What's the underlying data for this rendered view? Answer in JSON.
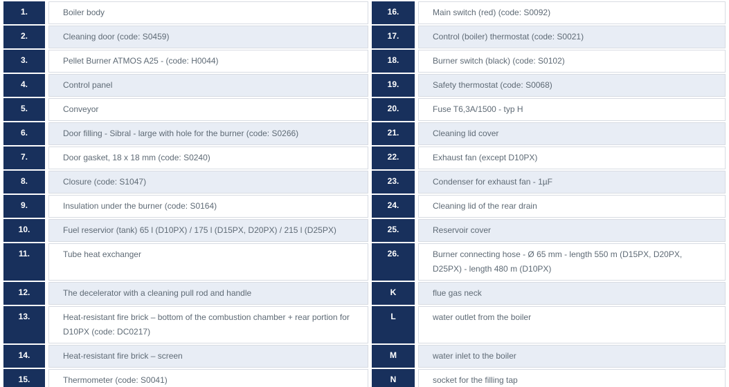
{
  "colors": {
    "number_cell_bg": "#18305c",
    "number_cell_text": "#ffffff",
    "row_alt_bg": "#e8edf5",
    "row_bg": "#ffffff",
    "cell_border": "#d7dbe2",
    "description_text": "#5e6a75"
  },
  "table": {
    "rows": [
      {
        "left_num": "1.",
        "left_text": "Boiler body",
        "right_num": "16.",
        "right_text": "Main switch (red) (code: S0092)"
      },
      {
        "left_num": "2.",
        "left_text": "Cleaning door (code: S0459)",
        "right_num": "17.",
        "right_text": "Control (boiler) thermostat (code: S0021)"
      },
      {
        "left_num": "3.",
        "left_text": "Pellet Burner ATMOS A25 - (code: H0044)",
        "right_num": "18.",
        "right_text": "Burner switch (black) (code: S0102)"
      },
      {
        "left_num": "4.",
        "left_text": "Control panel",
        "right_num": "19.",
        "right_text": "Safety thermostat (code: S0068)"
      },
      {
        "left_num": "5.",
        "left_text": "Conveyor",
        "right_num": "20.",
        "right_text": "Fuse T6,3A/1500 - typ H"
      },
      {
        "left_num": "6.",
        "left_text": "Door filling - Sibral - large with hole for the burner (code: S0266)",
        "right_num": "21.",
        "right_text": "Cleaning lid cover"
      },
      {
        "left_num": "7.",
        "left_text": "Door gasket, 18 x 18 mm (code: S0240)",
        "right_num": "22.",
        "right_text": "Exhaust fan (except D10PX)"
      },
      {
        "left_num": "8.",
        "left_text": "Closure (code: S1047)",
        "right_num": "23.",
        "right_text": "Condenser for exhaust fan - 1µF"
      },
      {
        "left_num": "9.",
        "left_text": "Insulation under the burner (code: S0164)",
        "right_num": "24.",
        "right_text": "Cleaning lid of the rear drain"
      },
      {
        "left_num": "10.",
        "left_text": "Fuel reservior (tank) 65 l (D10PX) / 175 l (D15PX, D20PX) / 215 l (D25PX)",
        "right_num": "25.",
        "right_text": "Reservoir cover"
      },
      {
        "left_num": "11.",
        "left_text": "Tube heat exchanger",
        "right_num": "26.",
        "right_text": "Burner connecting hose - Ø 65 mm - length 550 m (D15PX, D20PX, D25PX) - length 480 m (D10PX)"
      },
      {
        "left_num": "12.",
        "left_text": "The decelerator with a cleaning pull rod and handle",
        "right_num": "K",
        "right_text": "flue gas neck"
      },
      {
        "left_num": "13.",
        "left_text": "Heat-resistant fire brick – bottom of the combustion chamber + rear portion for D10PX (code: DC0217)",
        "right_num": "L",
        "right_text": "water outlet from the boiler"
      },
      {
        "left_num": "14.",
        "left_text": "Heat-resistant fire brick – screen",
        "right_num": "M",
        "right_text": "water inlet to the boiler"
      },
      {
        "left_num": "15.",
        "left_text": "Thermometer (code: S0041)",
        "right_num": "N",
        "right_text": "socket for the filling tap"
      }
    ]
  }
}
